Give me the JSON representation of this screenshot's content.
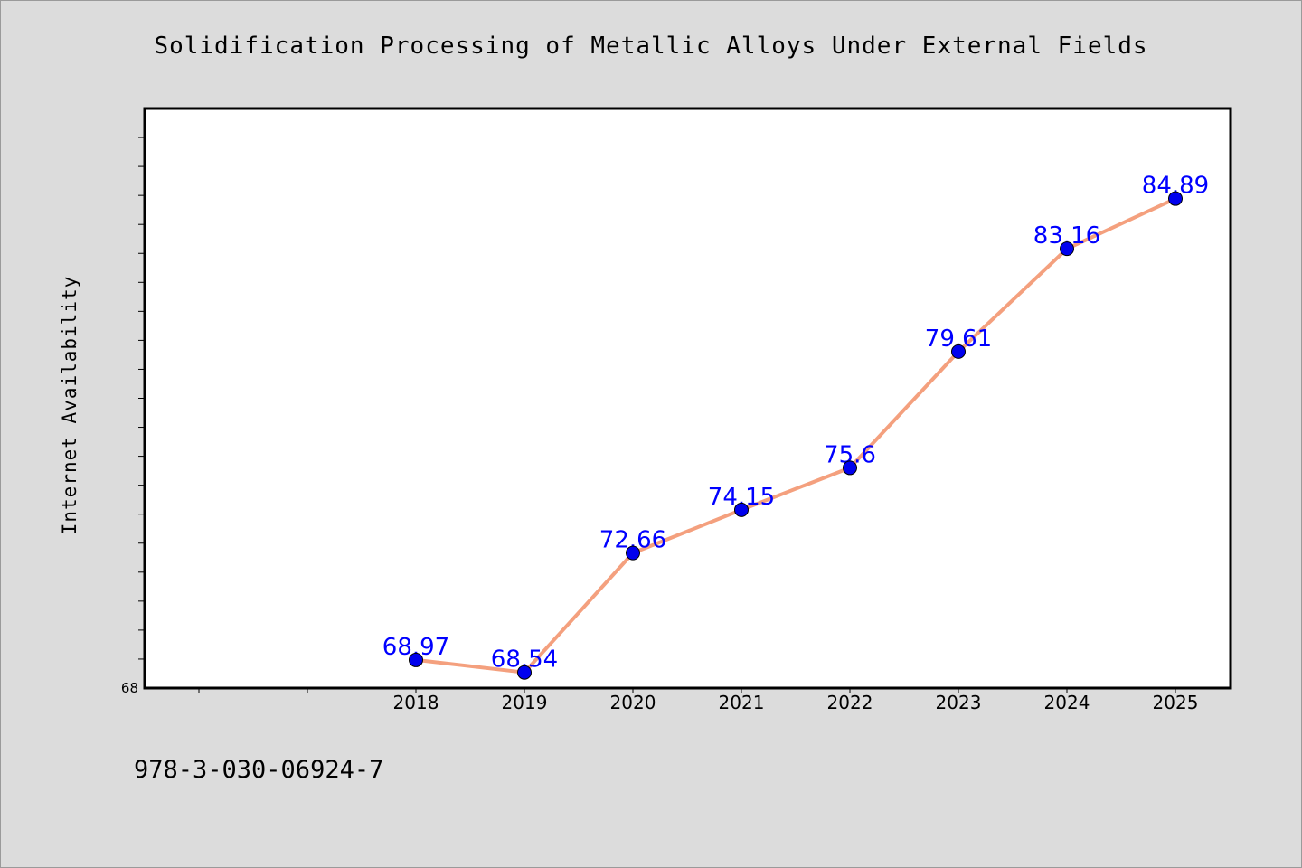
{
  "title": "Solidification Processing of Metallic Alloys Under External Fields",
  "footer_text": "978-3-030-06924-7",
  "colors": {
    "background": "#dcdcdc",
    "plot_background": "#ffffff",
    "line": "#f4a07e",
    "marker": "#0000ee",
    "data_label": "#0000ff"
  },
  "chart_data": {
    "type": "line",
    "title": "Solidification Processing of Metallic Alloys Under External Fields",
    "xlabel": "",
    "ylabel": "Internet Availability",
    "categories": [
      "2018",
      "2019",
      "2020",
      "2021",
      "2022",
      "2023",
      "2024",
      "2025"
    ],
    "series": [
      {
        "values": [
          68.97,
          68.54,
          72.66,
          74.15,
          75.6,
          79.61,
          83.16,
          84.89
        ],
        "labels": [
          "68.97",
          "68.54",
          "72.66",
          "74.15",
          "75.6",
          "79.61",
          "83.16",
          "84.89"
        ]
      }
    ],
    "ylim": [
      68,
      88
    ],
    "y_tick_labels": [
      "68"
    ],
    "grid": false,
    "legend": "none"
  }
}
